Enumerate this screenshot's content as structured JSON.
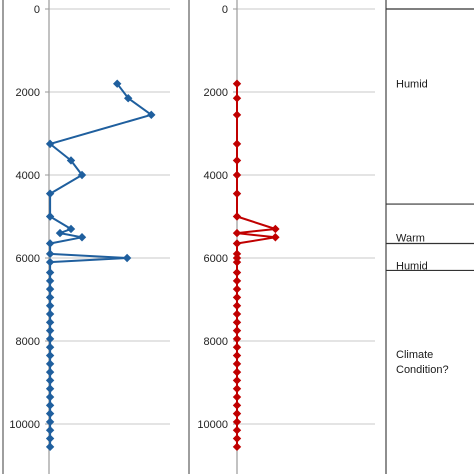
{
  "chart_data": {
    "type": "line",
    "orientation": "depth-vertical",
    "y_axis": {
      "ylim": [
        0,
        10800
      ],
      "inverted": true,
      "ticks": [
        0,
        2000,
        4000,
        6000,
        8000,
        10000
      ],
      "grid": true
    },
    "panels": [
      {
        "color": "#1f5f9e",
        "x_range": [
          0,
          1
        ],
        "points": [
          {
            "x": 0.62,
            "y": 1800
          },
          {
            "x": 0.72,
            "y": 2150
          },
          {
            "x": 0.93,
            "y": 2550
          },
          {
            "x": 0.01,
            "y": 3250
          },
          {
            "x": 0.2,
            "y": 3650
          },
          {
            "x": 0.3,
            "y": 4000
          },
          {
            "x": 0.01,
            "y": 4450
          },
          {
            "x": 0.01,
            "y": 5000
          },
          {
            "x": 0.2,
            "y": 5300
          },
          {
            "x": 0.1,
            "y": 5400
          },
          {
            "x": 0.3,
            "y": 5500
          },
          {
            "x": 0.01,
            "y": 5650
          },
          {
            "x": 0.01,
            "y": 5900
          },
          {
            "x": 0.71,
            "y": 6000
          },
          {
            "x": 0.01,
            "y": 6100
          },
          {
            "x": 0.01,
            "y": 6350
          },
          {
            "x": 0.01,
            "y": 6550
          },
          {
            "x": 0.01,
            "y": 6750
          },
          {
            "x": 0.01,
            "y": 6950
          },
          {
            "x": 0.01,
            "y": 7150
          },
          {
            "x": 0.01,
            "y": 7350
          },
          {
            "x": 0.01,
            "y": 7550
          },
          {
            "x": 0.01,
            "y": 7750
          },
          {
            "x": 0.01,
            "y": 7950
          },
          {
            "x": 0.01,
            "y": 8150
          },
          {
            "x": 0.01,
            "y": 8350
          },
          {
            "x": 0.01,
            "y": 8550
          },
          {
            "x": 0.01,
            "y": 8750
          },
          {
            "x": 0.01,
            "y": 8950
          },
          {
            "x": 0.01,
            "y": 9150
          },
          {
            "x": 0.01,
            "y": 9350
          },
          {
            "x": 0.01,
            "y": 9550
          },
          {
            "x": 0.01,
            "y": 9750
          },
          {
            "x": 0.01,
            "y": 9950
          },
          {
            "x": 0.01,
            "y": 10150
          },
          {
            "x": 0.01,
            "y": 10350
          },
          {
            "x": 0.01,
            "y": 10550
          }
        ]
      },
      {
        "color": "#c00000",
        "x_range": [
          0,
          1
        ],
        "points": [
          {
            "x": 0.0,
            "y": 1800
          },
          {
            "x": 0.0,
            "y": 2150
          },
          {
            "x": 0.0,
            "y": 2550
          },
          {
            "x": 0.0,
            "y": 3250
          },
          {
            "x": 0.0,
            "y": 3650
          },
          {
            "x": 0.0,
            "y": 4000
          },
          {
            "x": 0.0,
            "y": 4450
          },
          {
            "x": 0.0,
            "y": 5000
          },
          {
            "x": 0.32,
            "y": 5300
          },
          {
            "x": 0.0,
            "y": 5400
          },
          {
            "x": 0.32,
            "y": 5500
          },
          {
            "x": 0.0,
            "y": 5650
          },
          {
            "x": 0.0,
            "y": 5900
          },
          {
            "x": 0.0,
            "y": 6000
          },
          {
            "x": 0.0,
            "y": 6100
          },
          {
            "x": 0.0,
            "y": 6350
          },
          {
            "x": 0.0,
            "y": 6550
          },
          {
            "x": 0.0,
            "y": 6750
          },
          {
            "x": 0.0,
            "y": 6950
          },
          {
            "x": 0.0,
            "y": 7150
          },
          {
            "x": 0.0,
            "y": 7350
          },
          {
            "x": 0.0,
            "y": 7550
          },
          {
            "x": 0.0,
            "y": 7750
          },
          {
            "x": 0.0,
            "y": 7950
          },
          {
            "x": 0.0,
            "y": 8150
          },
          {
            "x": 0.0,
            "y": 8350
          },
          {
            "x": 0.0,
            "y": 8550
          },
          {
            "x": 0.0,
            "y": 8750
          },
          {
            "x": 0.0,
            "y": 8950
          },
          {
            "x": 0.0,
            "y": 9150
          },
          {
            "x": 0.0,
            "y": 9350
          },
          {
            "x": 0.0,
            "y": 9550
          },
          {
            "x": 0.0,
            "y": 9750
          },
          {
            "x": 0.0,
            "y": 9950
          },
          {
            "x": 0.0,
            "y": 10150
          },
          {
            "x": 0.0,
            "y": 10350
          },
          {
            "x": 0.0,
            "y": 10550
          }
        ]
      }
    ],
    "zones": [
      {
        "label": "Humid",
        "from": 0,
        "to": 4700
      },
      {
        "label": "Warm",
        "from": 4700,
        "to": 5650
      },
      {
        "label": "Humid",
        "from": 5650,
        "to": 6300
      },
      {
        "label": "Climate Condition?",
        "from": 6300,
        "to": 10800
      }
    ]
  }
}
